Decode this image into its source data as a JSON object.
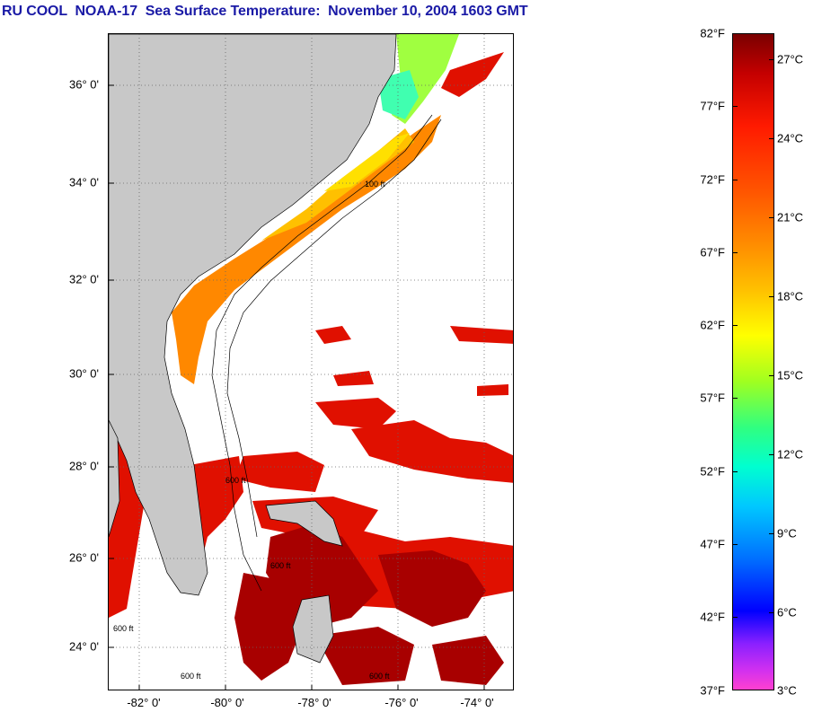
{
  "title": "RU COOL  NOAA-17  Sea Surface Temperature:  November 10, 2004 1603 GMT",
  "map": {
    "latitude_labels": [
      {
        "text": "36° 0'",
        "lat": 36
      },
      {
        "text": "34° 0'",
        "lat": 34
      },
      {
        "text": "32° 0'",
        "lat": 32
      },
      {
        "text": "30° 0'",
        "lat": 30
      },
      {
        "text": "28° 0'",
        "lat": 28
      },
      {
        "text": "26° 0'",
        "lat": 26
      },
      {
        "text": "24° 0'",
        "lat": 24
      }
    ],
    "longitude_labels": [
      {
        "text": "-82° 0'",
        "lon": -82
      },
      {
        "text": "-80° 0'",
        "lon": -80
      },
      {
        "text": "-78° 0'",
        "lon": -78
      },
      {
        "text": "-76° 0'",
        "lon": -76
      },
      {
        "text": "-74° 0'",
        "lon": -74
      }
    ],
    "contour_labels": [
      "100 ft",
      "600 ft",
      "600 ft",
      "600 ft",
      "600 ft",
      "600 ft"
    ],
    "colors": {
      "land": "#c8c8c8",
      "cloud": "#ffffff",
      "warm": "#e01000",
      "coastal_orange": "#ff8800",
      "coastal_yellow": "#ffe000",
      "cool_green": "#40ff90"
    }
  },
  "colorbar": {
    "fahrenheit": [
      {
        "text": "82°F",
        "value": 82
      },
      {
        "text": "77°F",
        "value": 77
      },
      {
        "text": "72°F",
        "value": 72
      },
      {
        "text": "67°F",
        "value": 67
      },
      {
        "text": "62°F",
        "value": 62
      },
      {
        "text": "57°F",
        "value": 57
      },
      {
        "text": "52°F",
        "value": 52
      },
      {
        "text": "47°F",
        "value": 47
      },
      {
        "text": "42°F",
        "value": 42
      },
      {
        "text": "37°F",
        "value": 37
      }
    ],
    "celsius": [
      {
        "text": "27°C",
        "value": 27
      },
      {
        "text": "24°C",
        "value": 24
      },
      {
        "text": "21°C",
        "value": 21
      },
      {
        "text": "18°C",
        "value": 18
      },
      {
        "text": "15°C",
        "value": 15
      },
      {
        "text": "12°C",
        "value": 12
      },
      {
        "text": "9°C",
        "value": 9
      },
      {
        "text": "6°C",
        "value": 6
      },
      {
        "text": "3°C",
        "value": 3
      }
    ]
  }
}
